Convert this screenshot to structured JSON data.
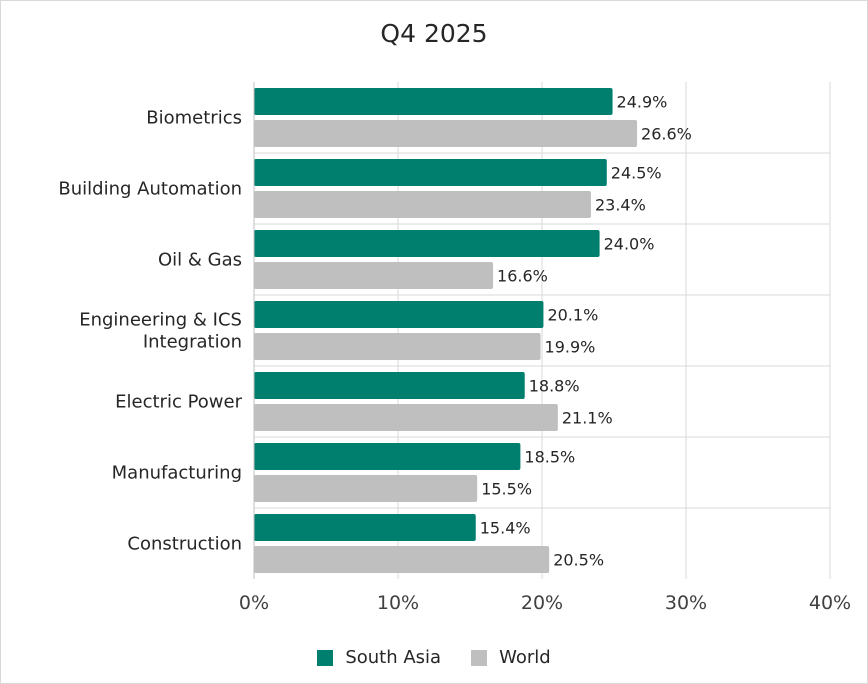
{
  "chart_data": {
    "type": "bar",
    "orientation": "horizontal",
    "title": "Q4 2025",
    "categories": [
      "Biometrics",
      "Building Automation",
      "Oil & Gas",
      "Engineering & ICS Integration",
      "Electric Power",
      "Manufacturing",
      "Construction"
    ],
    "series": [
      {
        "name": "South Asia",
        "color": "#007f6e",
        "values": [
          24.9,
          24.5,
          24.0,
          20.1,
          18.8,
          18.5,
          15.4
        ]
      },
      {
        "name": "World",
        "color": "#bfbfbf",
        "values": [
          26.6,
          23.4,
          16.6,
          19.9,
          21.1,
          15.5,
          20.5
        ]
      }
    ],
    "xlim": [
      0,
      40
    ],
    "x_ticks": [
      0,
      10,
      20,
      30,
      40
    ],
    "x_tick_suffix": "%",
    "value_suffix": "%",
    "grid": true,
    "legend_position": "bottom"
  }
}
